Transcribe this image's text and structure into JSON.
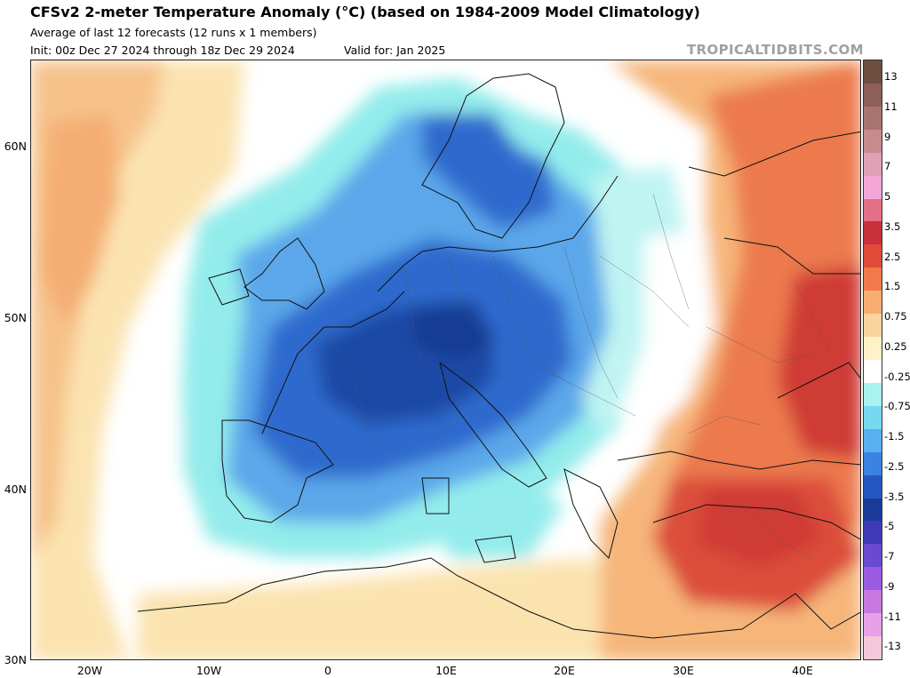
{
  "header": {
    "title": "CFSv2 2-meter Temperature Anomaly (°C) (based on 1984-2009 Model Climatology)",
    "subtitle": "Average of last 12 forecasts (12 runs x 1 members)",
    "init": "Init: 00z Dec 27 2024 through 18z Dec 29 2024",
    "valid": "Valid for: Jan 2025",
    "brand": "TROPICALTIDBITS.COM"
  },
  "axes": {
    "lat_labels": [
      "60N",
      "50N",
      "40N",
      "30N"
    ],
    "lon_labels": [
      "20W",
      "10W",
      "0",
      "10E",
      "20E",
      "30E",
      "40E"
    ]
  },
  "colorbar": {
    "labels": [
      "13",
      "11",
      "9",
      "7",
      "5",
      "3.5",
      "2.5",
      "1.5",
      "0.75",
      "0.25",
      "-0.25",
      "-0.75",
      "-1.5",
      "-2.5",
      "-3.5",
      "-5",
      "-7",
      "-9",
      "-11",
      "-13"
    ],
    "colors": [
      "#6e4e3e",
      "#8c6058",
      "#a97470",
      "#c98a8c",
      "#e0a0b6",
      "#f4a6d8",
      "#e47088",
      "#c8303c",
      "#e04a38",
      "#f07a4c",
      "#f8ae72",
      "#fad49e",
      "#fff2c6",
      "#ffffff",
      "#a8f2f0",
      "#78d8f0",
      "#58b0ee",
      "#3c82e0",
      "#2656c0",
      "#1a3a9a",
      "#3e3ab8",
      "#6a4ad0",
      "#9c5ae0",
      "#c878e0",
      "#e8a0e8",
      "#f4c8d8"
    ]
  },
  "palette": {
    "ocean": "#ffffff",
    "warm_light": "#fbe3b0",
    "warm_mid": "#f6b67a",
    "warm_strong": "#ec7a4e",
    "warm_max": "#cf3b34",
    "cool_light": "#93eceb",
    "cool_mid": "#5ba7ea",
    "cool_strong": "#2f6bcd",
    "cool_max": "#1f4aa6"
  }
}
